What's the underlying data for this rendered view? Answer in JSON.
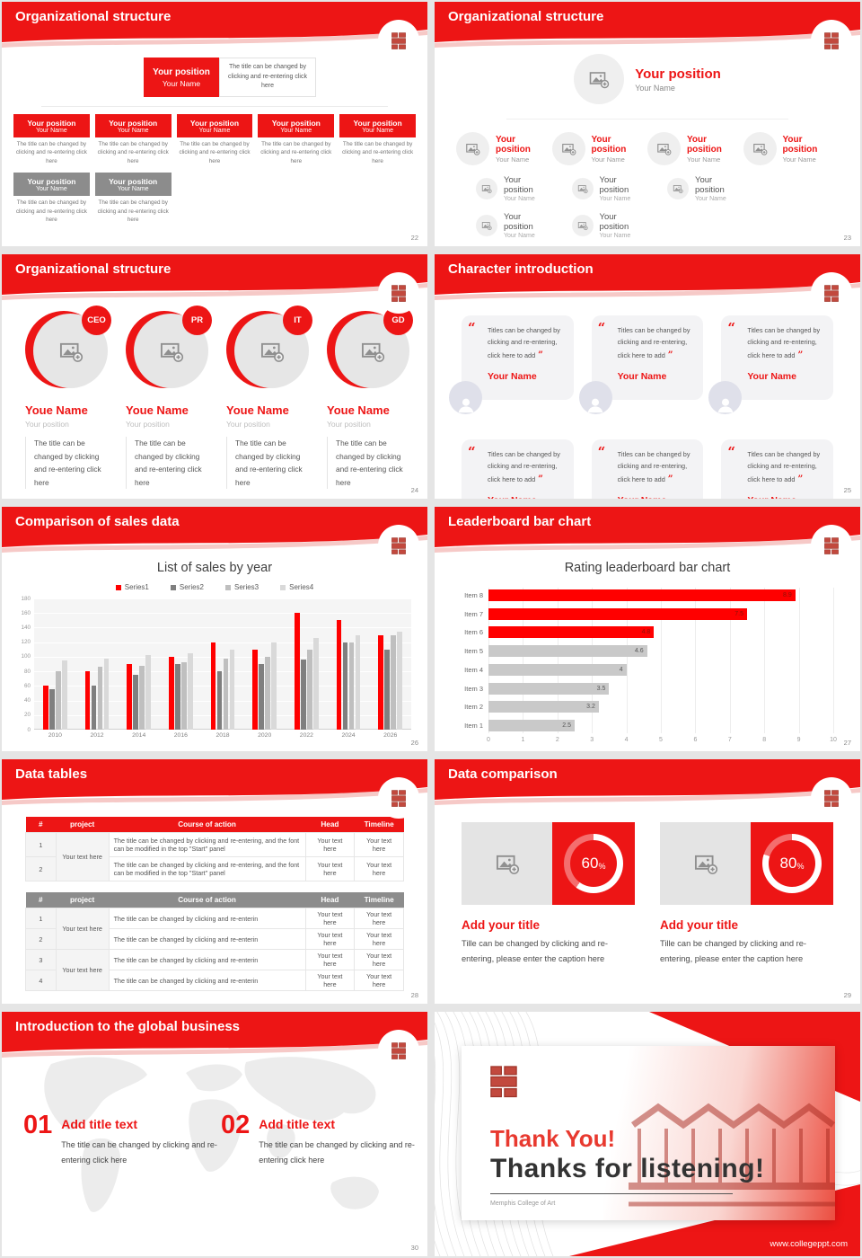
{
  "theme": {
    "red": "#ED1515",
    "gray_node": "#8C8C8C",
    "card_gray": "#F3F3F5",
    "avatar_bg": "#DFE0EA",
    "series_colors": [
      "#FF0000",
      "#7F7F7F",
      "#BFBFBF",
      "#D9D9D9"
    ]
  },
  "slides": {
    "s22": {
      "title": "Organizational structure",
      "page": "22",
      "box_position": "Your position",
      "box_name": "Your Name",
      "box_desc": "The title can be changed by clicking and re-entering click here",
      "top_desc": "The title can be changed by clicking and re-entering click here",
      "red_box_count": 5,
      "gray_box_count": 2
    },
    "s23": {
      "title": "Organizational structure",
      "page": "23",
      "root_position": "Your position",
      "root_name": "Your Name",
      "branch_position": "Your position",
      "branch_name": "Your Name",
      "branch_count": 4,
      "sub_counts": [
        2,
        2,
        1,
        0
      ]
    },
    "s24": {
      "title": "Organizational structure",
      "page": "24",
      "badges": [
        "CEO",
        "PR",
        "IT",
        "GD"
      ],
      "member_name": "Youe Name",
      "member_position": "Your position",
      "member_desc": "The title can be changed by clicking and re-entering click here"
    },
    "s25": {
      "title": "Character introduction",
      "page": "25",
      "card_count": 6,
      "quote_text": "Titles can be changed by clicking and re-entering, click here to add",
      "person_name": "Your Name"
    },
    "s26": {
      "title": "Comparison of sales data",
      "page": "26"
    },
    "s27": {
      "title": "Leaderboard bar chart",
      "page": "27"
    },
    "s28": {
      "title": "Data tables",
      "page": "28",
      "columns": [
        "#",
        "project",
        "Course of action",
        "Head",
        "Timeline"
      ],
      "table1": {
        "rows": [
          "1",
          "2"
        ],
        "project_cell": "Your text here",
        "action_text": "The title can be changed by clicking and re-entering, and the font can be modified in the top \"Start\" panel",
        "cell_text": "Your text here"
      },
      "table2": {
        "rows": [
          "1",
          "2",
          "3",
          "4"
        ],
        "project_cell": "Your text here",
        "action_text": "The title can be changed by clicking and re-enterin",
        "cell_text": "Your text here"
      }
    },
    "s29": {
      "title": "Data comparison",
      "page": "29",
      "panels": [
        {
          "percent": 60,
          "percent_label": "60",
          "unit": "%"
        },
        {
          "percent": 80,
          "percent_label": "80",
          "unit": "%"
        }
      ],
      "panel_title": "Add your title",
      "panel_caption": "Tille can be changed by clicking and re-entering, please enter the caption here"
    },
    "s30": {
      "title": "Introduction to the global business",
      "page": "30",
      "items": [
        {
          "number": "01",
          "title": "Add title text",
          "desc": "The title can be changed by clicking and re-entering click here"
        },
        {
          "number": "02",
          "title": "Add title text",
          "desc": "The title can be changed by clicking and re-entering click here"
        }
      ]
    },
    "s31": {
      "thank_you": "Thank You!",
      "subtitle": "Thanks for listening!",
      "caption": "Memphis College of Art",
      "website": "www.collegeppt.com"
    }
  },
  "chart_data": [
    {
      "slide": "s26",
      "type": "bar",
      "title": "List of sales by year",
      "categories": [
        "2010",
        "2012",
        "2014",
        "2016",
        "2018",
        "2020",
        "2022",
        "2024",
        "2026"
      ],
      "series": [
        {
          "name": "Series1",
          "color": "#FF0000",
          "values": [
            60,
            80,
            90,
            100,
            120,
            110,
            160,
            150,
            130
          ]
        },
        {
          "name": "Series2",
          "color": "#7F7F7F",
          "values": [
            55,
            60,
            75,
            90,
            80,
            90,
            96,
            120,
            110
          ]
        },
        {
          "name": "Series3",
          "color": "#BFBFBF",
          "values": [
            80,
            86,
            88,
            92,
            97,
            100,
            110,
            120,
            130
          ]
        },
        {
          "name": "Series4",
          "color": "#D9D9D9",
          "values": [
            95,
            98,
            102,
            105,
            110,
            120,
            126,
            130,
            135
          ]
        }
      ],
      "ylim": [
        0,
        180
      ],
      "yticks": [
        0,
        20,
        40,
        60,
        80,
        100,
        120,
        140,
        160,
        180
      ],
      "grid": true,
      "legend_position": "top"
    },
    {
      "slide": "s27",
      "type": "bar-horizontal",
      "title": "Rating leaderboard bar chart",
      "categories": [
        "Item 1",
        "Item 2",
        "Item 3",
        "Item 4",
        "Item 5",
        "Item 6",
        "Item 7",
        "Item 8"
      ],
      "values": [
        2.5,
        3.2,
        3.5,
        4,
        4.6,
        4.8,
        7.5,
        8.9
      ],
      "labels": [
        "2.5",
        "3.2",
        "3.5",
        "4",
        "4.6",
        "4.8",
        "7.5",
        "8.9"
      ],
      "colors": [
        "#C9C9C9",
        "#C9C9C9",
        "#C9C9C9",
        "#C9C9C9",
        "#C9C9C9",
        "#FF0000",
        "#FF0000",
        "#FF0000"
      ],
      "label_colors": [
        "#595959",
        "#595959",
        "#595959",
        "#595959",
        "#595959",
        "#8B1208",
        "#8B1208",
        "#8B1208"
      ],
      "xlim": [
        0,
        10
      ],
      "xticks": [
        0,
        1,
        2,
        3,
        4,
        5,
        6,
        7,
        8,
        9,
        10
      ],
      "grid": true
    }
  ]
}
